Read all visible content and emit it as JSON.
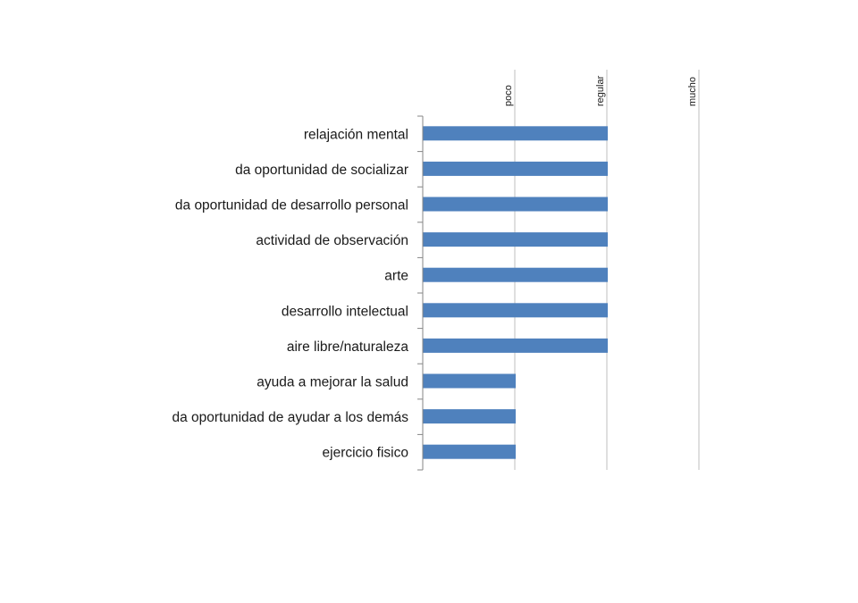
{
  "chart_data": {
    "type": "bar",
    "orientation": "horizontal",
    "categories": [
      "relajación mental",
      "da oportunidad de socializar",
      "da oportunidad de desarrollo personal",
      "actividad de observación",
      "arte",
      "desarrollo intelectual",
      "aire libre/naturaleza",
      "ayuda a mejorar la salud",
      "da oportunidad de ayudar a los demás",
      "ejercicio fisico"
    ],
    "values": [
      2,
      2,
      2,
      2,
      2,
      2,
      2,
      1,
      1,
      1
    ],
    "x_ticks": [
      {
        "value": 1,
        "label": "poco"
      },
      {
        "value": 2,
        "label": "regular"
      },
      {
        "value": 3,
        "label": "mucho"
      }
    ],
    "xlim": [
      0,
      3
    ],
    "x_axis_position": "top",
    "grid": true,
    "legend": "none",
    "bar_color": "#4F81BD",
    "gridline_color": "#BFBFBF",
    "axis_color": "#868686"
  }
}
